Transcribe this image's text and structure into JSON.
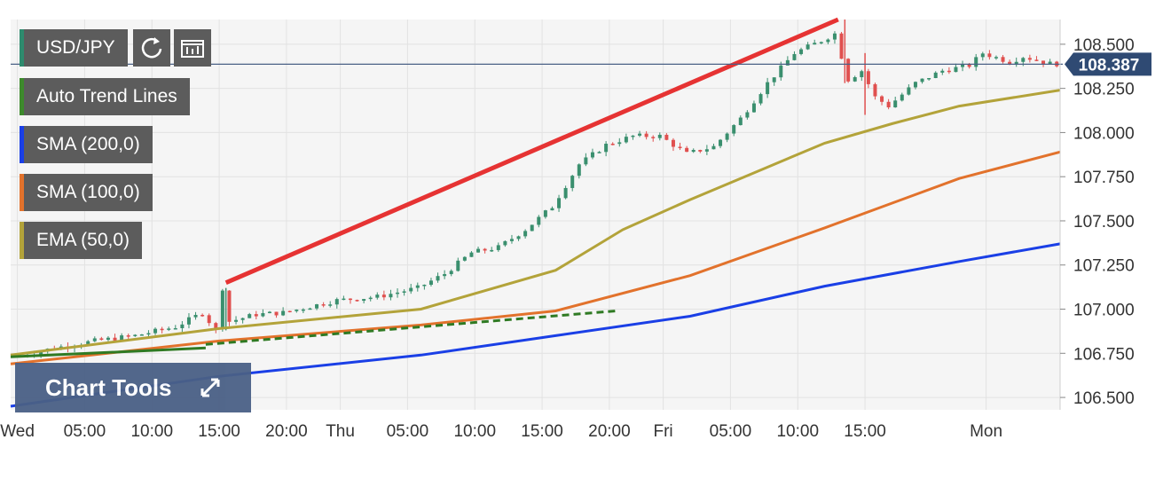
{
  "chart_data": {
    "type": "candlestick",
    "symbol": "USD/JPY",
    "last_price": "108.387",
    "y_tick_labels": [
      "108.500",
      "108.250",
      "108.000",
      "107.750",
      "107.500",
      "107.250",
      "107.000",
      "106.750",
      "106.500"
    ],
    "y_ticks": [
      108.5,
      108.25,
      108.0,
      107.75,
      107.5,
      107.25,
      107.0,
      106.75,
      106.5
    ],
    "ylim": [
      106.43,
      108.64
    ],
    "x_tick_labels": [
      "Wed",
      "05:00",
      "10:00",
      "15:00",
      "20:00",
      "Thu",
      "05:00",
      "10:00",
      "15:00",
      "20:00",
      "Fri",
      "05:00",
      "10:00",
      "15:00",
      "Mon"
    ],
    "x_tick_hours": [
      0,
      5,
      10,
      15,
      20,
      24,
      29,
      34,
      39,
      44,
      48,
      53,
      58,
      63,
      72
    ],
    "xlim": [
      -0.5,
      77.5
    ],
    "price_path": [
      [
        0,
        106.73
      ],
      [
        3,
        106.78
      ],
      [
        6,
        106.82
      ],
      [
        9,
        106.85
      ],
      [
        12,
        106.9
      ],
      [
        14,
        106.98
      ],
      [
        15,
        106.88
      ],
      [
        15.5,
        107.12
      ],
      [
        16,
        106.93
      ],
      [
        18,
        106.97
      ],
      [
        20,
        106.98
      ],
      [
        24,
        107.05
      ],
      [
        27,
        107.07
      ],
      [
        30,
        107.12
      ],
      [
        32,
        107.2
      ],
      [
        34,
        107.32
      ],
      [
        36,
        107.35
      ],
      [
        38,
        107.45
      ],
      [
        40,
        107.58
      ],
      [
        42,
        107.82
      ],
      [
        44,
        107.93
      ],
      [
        46,
        107.98
      ],
      [
        48,
        107.98
      ],
      [
        50,
        107.88
      ],
      [
        52,
        107.92
      ],
      [
        54,
        108.08
      ],
      [
        56,
        108.28
      ],
      [
        58,
        108.45
      ],
      [
        60,
        108.52
      ],
      [
        61,
        108.56
      ],
      [
        62,
        108.3
      ],
      [
        63,
        108.35
      ],
      [
        64,
        108.2
      ],
      [
        65,
        108.15
      ],
      [
        67,
        108.28
      ],
      [
        69,
        108.35
      ],
      [
        71,
        108.38
      ],
      [
        72,
        108.45
      ],
      [
        74,
        108.4
      ],
      [
        75,
        108.43
      ],
      [
        77,
        108.39
      ]
    ],
    "series": [
      {
        "name": "SMA (200,0)",
        "color": "#1a3fe6",
        "values": [
          [
            -0.5,
            106.45
          ],
          [
            15,
            106.62
          ],
          [
            30,
            106.74
          ],
          [
            40,
            106.85
          ],
          [
            50,
            106.96
          ],
          [
            60,
            107.13
          ],
          [
            70,
            107.27
          ],
          [
            77.5,
            107.37
          ]
        ]
      },
      {
        "name": "SMA (100,0)",
        "color": "#e2722c",
        "values": [
          [
            -0.5,
            106.69
          ],
          [
            15,
            106.82
          ],
          [
            30,
            106.91
          ],
          [
            40,
            106.99
          ],
          [
            50,
            107.19
          ],
          [
            60,
            107.46
          ],
          [
            70,
            107.74
          ],
          [
            77.5,
            107.89
          ]
        ]
      },
      {
        "name": "EMA (50,0)",
        "color": "#b3a33a",
        "values": [
          [
            -0.5,
            106.74
          ],
          [
            15,
            106.89
          ],
          [
            30,
            107.0
          ],
          [
            40,
            107.22
          ],
          [
            45,
            107.45
          ],
          [
            50,
            107.62
          ],
          [
            55,
            107.78
          ],
          [
            60,
            107.94
          ],
          [
            65,
            108.05
          ],
          [
            70,
            108.15
          ],
          [
            77.5,
            108.24
          ]
        ]
      }
    ],
    "trend_lines": [
      {
        "name": "Auto Trend Lines",
        "color": "#e63333",
        "style": "solid",
        "points": [
          [
            15.5,
            107.15
          ],
          [
            61,
            108.64
          ]
        ]
      },
      {
        "name": "Auto Trend Lines",
        "color": "#2f7a23",
        "style": "solid",
        "points": [
          [
            -0.5,
            106.73
          ],
          [
            14,
            106.78
          ]
        ]
      },
      {
        "name": "Auto Trend Lines",
        "color": "#2f7a23",
        "style": "dashed",
        "points": [
          [
            14,
            106.8
          ],
          [
            44.5,
            106.99
          ]
        ]
      }
    ],
    "current_line_color": "#4a6086"
  },
  "legend": {
    "symbol": "USD/JPY",
    "auto_trend": "Auto Trend Lines",
    "sma200": "SMA (200,0)",
    "sma100": "SMA (100,0)",
    "ema50": "EMA (50,0)",
    "swatch_colors": {
      "symbol": "#2e8b6e",
      "auto_trend": "#3d8a2c",
      "sma200": "#1a3fe6",
      "sma100": "#e2722c",
      "ema50": "#b3a33a"
    }
  },
  "toolbar": {
    "chart_tools_label": "Chart Tools"
  },
  "icons": [
    "refresh-icon",
    "candle-settings-icon",
    "expand-icon"
  ],
  "colors": {
    "up": "#3a8f6e",
    "down": "#e0504f",
    "price_label_bg": "#2f4a73",
    "plot_bg": "#f5f5f5"
  }
}
